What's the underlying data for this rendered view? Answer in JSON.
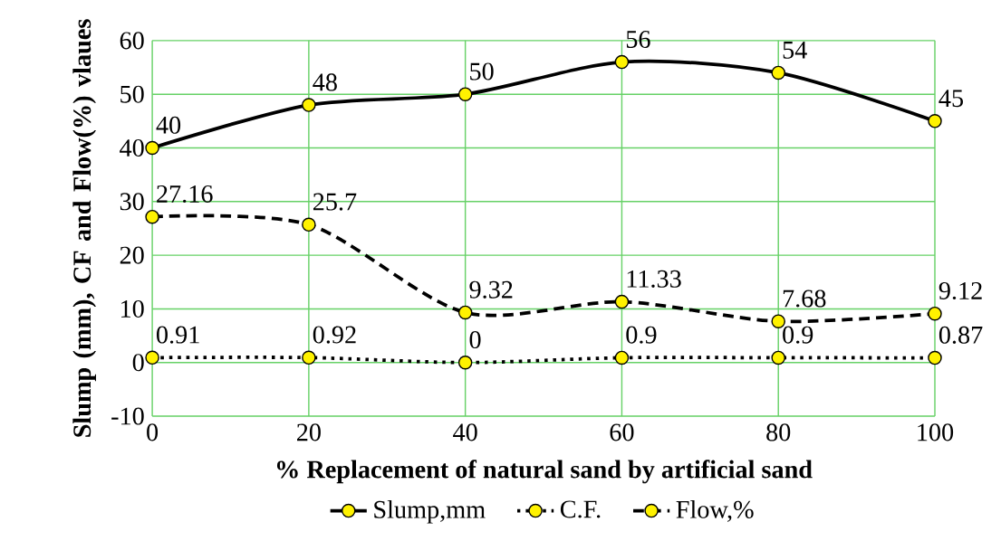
{
  "chart_data": {
    "type": "line",
    "xlabel": "% Replacement of natural sand by artificial sand",
    "ylabel": "Slump (mm), CF and Flow(%) vlaues",
    "x": [
      0,
      20,
      40,
      60,
      80,
      100
    ],
    "series": [
      {
        "name": "Slump,mm",
        "color": "#000000",
        "line_style": "solid",
        "values": [
          40,
          48,
          50,
          56,
          54,
          45
        ]
      },
      {
        "name": "C.F.",
        "color": "#000000",
        "line_style": "dotted",
        "values": [
          0.91,
          0.92,
          0,
          0.9,
          0.9,
          0.87
        ]
      },
      {
        "name": "Flow,%",
        "color": "#000000",
        "line_style": "dashed",
        "values": [
          27.16,
          25.7,
          9.32,
          11.33,
          7.68,
          9.12
        ]
      }
    ],
    "xlim": [
      0,
      100
    ],
    "xticks": [
      0,
      20,
      40,
      60,
      80,
      100
    ],
    "ylim": [
      -10,
      60
    ],
    "yticks": [
      -10,
      0,
      10,
      20,
      30,
      40,
      50,
      60
    ],
    "grid": true,
    "legend": "bottom",
    "marker": "circle",
    "data_labels": true
  }
}
